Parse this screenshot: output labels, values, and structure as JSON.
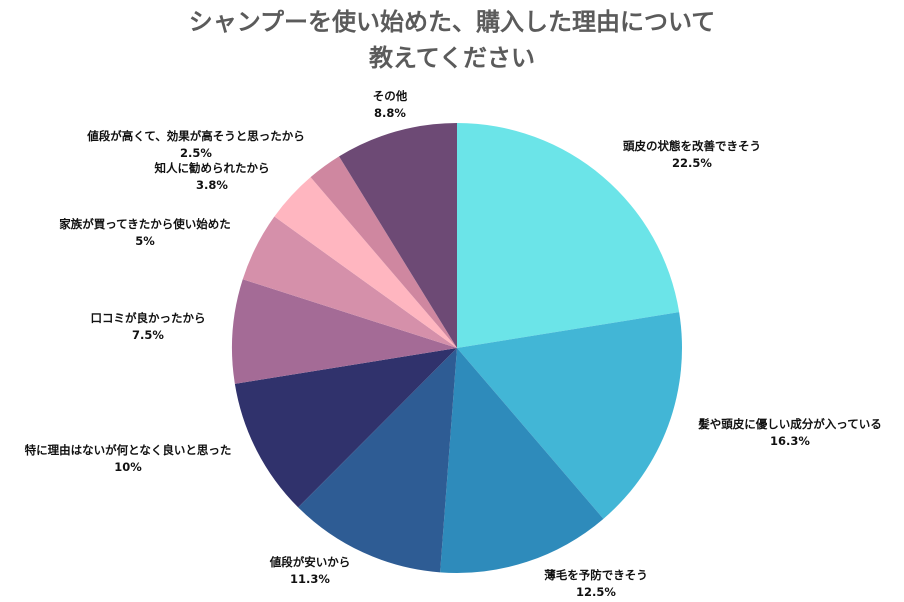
{
  "chart_data": {
    "type": "pie",
    "title_line1": "シャンプーを使い始めた、購入した理由について",
    "title_line2": "教えてください",
    "slices": [
      {
        "label": "頭皮の状態を改善できそう",
        "value": 22.5,
        "value_label": "22.5%",
        "color": "#6be4e8"
      },
      {
        "label": "髪や頭皮に優しい成分が入っている",
        "value": 16.3,
        "value_label": "16.3%",
        "color": "#42b6d6"
      },
      {
        "label": "薄毛を予防できそう",
        "value": 12.5,
        "value_label": "12.5%",
        "color": "#2e8bbb"
      },
      {
        "label": "値段が安いから",
        "value": 11.3,
        "value_label": "11.3%",
        "color": "#2e5c94"
      },
      {
        "label": "特に理由はないが何となく良いと思った",
        "value": 10,
        "value_label": "10%",
        "color": "#30326c"
      },
      {
        "label": "口コミが良かったから",
        "value": 7.5,
        "value_label": "7.5%",
        "color": "#a46b96"
      },
      {
        "label": "家族が買ってきたから使い始めた",
        "value": 5,
        "value_label": "5%",
        "color": "#d590aa"
      },
      {
        "label": "知人に勧められたから",
        "value": 3.8,
        "value_label": "3.8%",
        "color": "#ffb6c0"
      },
      {
        "label": "値段が高くて、効果が高そうと思ったから",
        "value": 2.5,
        "value_label": "2.5%",
        "color": "#cf87a0"
      },
      {
        "label": "その他",
        "value": 8.8,
        "value_label": "8.8%",
        "color": "#6d4a75"
      }
    ]
  }
}
